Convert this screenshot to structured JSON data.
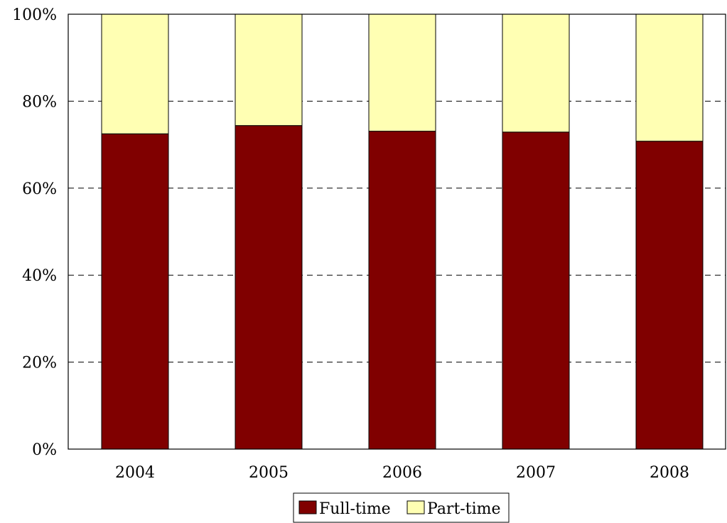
{
  "chart_data": {
    "type": "bar",
    "stacked": true,
    "categories": [
      "2004",
      "2005",
      "2006",
      "2007",
      "2008"
    ],
    "series": [
      {
        "name": "Full-time",
        "values": [
          72.5,
          74.4,
          73.1,
          72.9,
          70.8
        ],
        "color": "#800000"
      },
      {
        "name": "Part-time",
        "values": [
          27.5,
          25.6,
          26.9,
          27.1,
          29.2
        ],
        "color": "#ffffb3"
      }
    ],
    "yticks": [
      "0%",
      "20%",
      "40%",
      "60%",
      "80%",
      "100%"
    ],
    "ylim": [
      0,
      100
    ],
    "grid": "horizontal-dashed",
    "legend": "bottom-center"
  }
}
